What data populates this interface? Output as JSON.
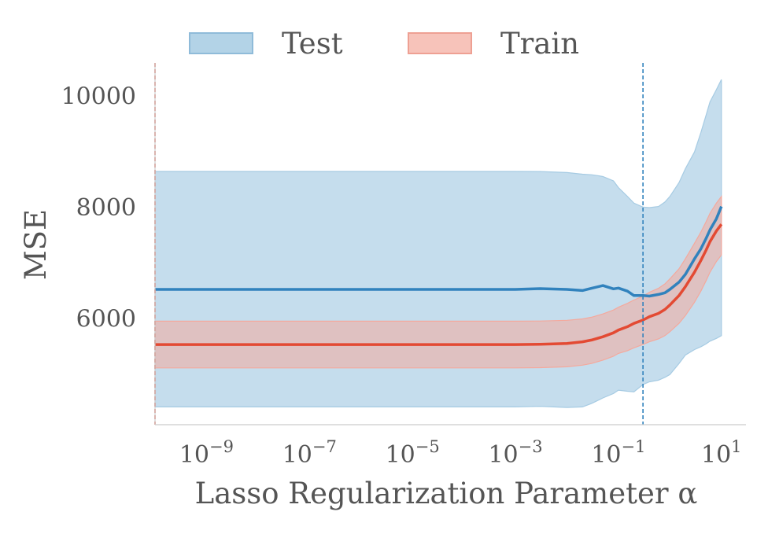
{
  "chart_data": {
    "type": "line",
    "xscale": "log",
    "xlim": [
      1e-10,
      30
    ],
    "ylim": [
      4100,
      10600
    ],
    "xlabel": "Lasso Regularization Parameter α",
    "ylabel": "MSE",
    "grid": false,
    "legend_position": "top",
    "x_ticks": [
      1e-09,
      1e-07,
      1e-05,
      0.001,
      0.1,
      10
    ],
    "x_tick_labels": [
      {
        "base": "10",
        "exp": "−9"
      },
      {
        "base": "10",
        "exp": "−7"
      },
      {
        "base": "10",
        "exp": "−5"
      },
      {
        "base": "10",
        "exp": "−3"
      },
      {
        "base": "10",
        "exp": "−1"
      },
      {
        "base": "10",
        "exp": "1"
      }
    ],
    "y_ticks": [
      6000,
      8000,
      10000
    ],
    "y_tick_labels": [
      "6000",
      "8000",
      "10000"
    ],
    "x": [
      1e-10,
      1e-08,
      1e-06,
      0.0001,
      0.001,
      0.003,
      0.01,
      0.02,
      0.03,
      0.05,
      0.08,
      0.1,
      0.15,
      0.2,
      0.3,
      0.4,
      0.6,
      0.8,
      1,
      1.5,
      2,
      3,
      4,
      5,
      6,
      8,
      10
    ],
    "series": [
      {
        "name": "Test",
        "color": "#3182bd",
        "fill": "#a6cbe3",
        "mean": [
          6530,
          6530,
          6530,
          6530,
          6530,
          6545,
          6530,
          6510,
          6550,
          6600,
          6540,
          6555,
          6500,
          6420,
          6420,
          6410,
          6440,
          6470,
          6530,
          6660,
          6800,
          7080,
          7260,
          7440,
          7600,
          7800,
          8020
        ],
        "upper": [
          8650,
          8650,
          8650,
          8650,
          8650,
          8648,
          8630,
          8600,
          8590,
          8560,
          8480,
          8360,
          8200,
          8080,
          8010,
          8000,
          8020,
          8100,
          8200,
          8450,
          8700,
          9000,
          9350,
          9650,
          9900,
          10120,
          10300
        ],
        "lower": [
          4420,
          4420,
          4420,
          4420,
          4420,
          4430,
          4410,
          4420,
          4480,
          4580,
          4660,
          4720,
          4700,
          4690,
          4820,
          4870,
          4900,
          4950,
          5000,
          5200,
          5350,
          5450,
          5500,
          5550,
          5600,
          5650,
          5700
        ]
      },
      {
        "name": "Train",
        "color": "#e34a33",
        "fill": "#f4a99d",
        "mean": [
          5540,
          5540,
          5540,
          5540,
          5540,
          5545,
          5560,
          5590,
          5620,
          5680,
          5750,
          5800,
          5860,
          5920,
          5980,
          6040,
          6100,
          6170,
          6250,
          6420,
          6580,
          6840,
          7050,
          7230,
          7390,
          7580,
          7700
        ],
        "upper": [
          5960,
          5960,
          5960,
          5960,
          5960,
          5962,
          5975,
          6000,
          6030,
          6090,
          6160,
          6210,
          6280,
          6340,
          6410,
          6480,
          6550,
          6630,
          6720,
          6900,
          7080,
          7360,
          7560,
          7740,
          7900,
          8080,
          8200
        ],
        "lower": [
          5120,
          5120,
          5120,
          5120,
          5120,
          5125,
          5140,
          5170,
          5200,
          5260,
          5330,
          5380,
          5430,
          5480,
          5540,
          5590,
          5640,
          5700,
          5770,
          5920,
          6060,
          6300,
          6500,
          6680,
          6840,
          7030,
          7150
        ]
      }
    ],
    "vlines": [
      {
        "x": 1e-10,
        "color": "#e34a33"
      },
      {
        "x": 0.3,
        "color": "#3182bd"
      }
    ]
  }
}
